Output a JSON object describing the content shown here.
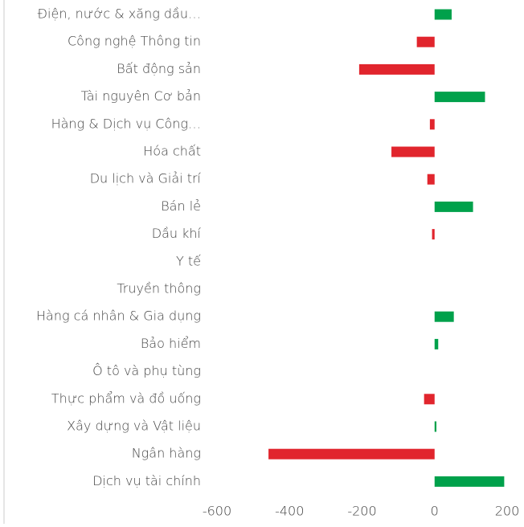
{
  "chart_data": {
    "type": "hbar",
    "categories": [
      "Điện, nước & xăng dầu…",
      "Công nghệ Thông tin",
      "Bất động sản",
      "Tài nguyên Cơ bản",
      "Hàng & Dịch vụ Công…",
      "Hóa chất",
      "Du lịch và Giải trí",
      "Bán lẻ",
      "Dầu khí",
      "Y tế",
      "Truyền thông",
      "Hàng cá nhân & Gia dụng",
      "Bảo hiểm",
      "Ô tô và phụ tùng",
      "Thực phẩm và đồ uống",
      "Xây dựng và Vật liệu",
      "Ngân hàng",
      "Dịch vụ tài chính"
    ],
    "values": [
      47,
      -49,
      -208,
      139,
      -13,
      -119,
      -20,
      106,
      -7,
      0,
      0,
      53,
      10,
      0,
      -29,
      5,
      -458,
      192
    ],
    "positive_color": "#00a14b",
    "negative_color": "#e1252d",
    "xlim": [
      -600,
      200
    ],
    "xticks": [
      -600,
      -400,
      -200,
      0,
      200
    ]
  }
}
